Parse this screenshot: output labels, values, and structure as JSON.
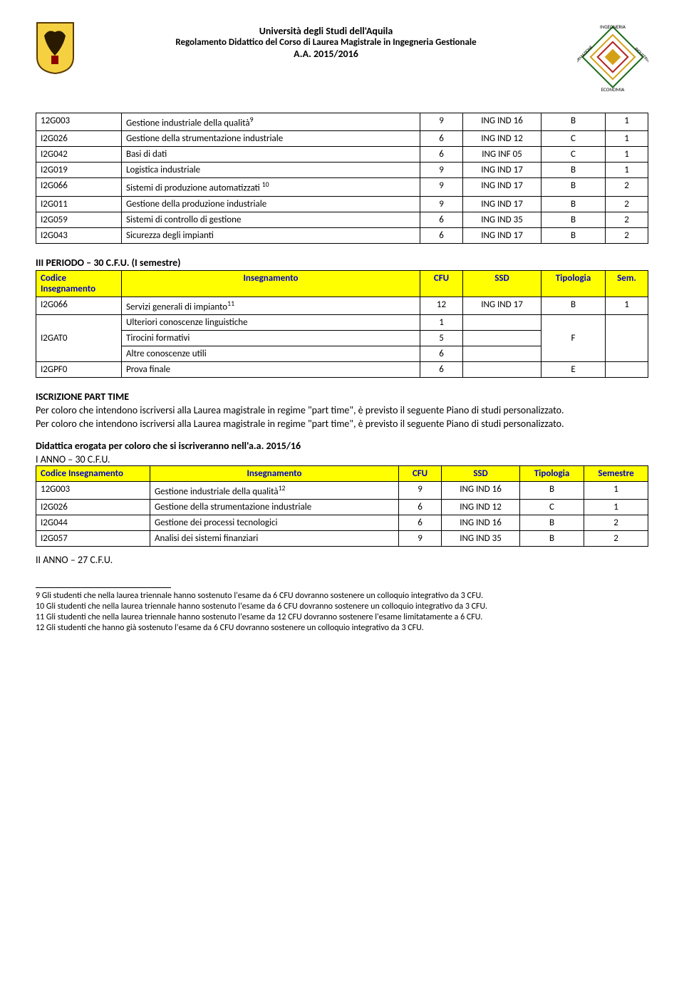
{
  "header": {
    "line1": "Università degli Studi dell'Aquila",
    "line2": "Regolamento Didattico del Corso di Laurea Magistrale in Ingegneria Gestionale",
    "line3": "A.A. 2015/2016"
  },
  "table1": {
    "rows": [
      {
        "code": "12G003",
        "name": "Gestione industriale della qualità",
        "sup": "9",
        "cfu": "9",
        "ssd": "ING IND 16",
        "tip": "B",
        "sem": "1"
      },
      {
        "code": "I2G026",
        "name": "Gestione della strumentazione industriale",
        "sup": "",
        "cfu": "6",
        "ssd": "ING IND 12",
        "tip": "C",
        "sem": "1"
      },
      {
        "code": "I2G042",
        "name": "Basi di dati",
        "sup": "",
        "cfu": "6",
        "ssd": "ING INF 05",
        "tip": "C",
        "sem": "1"
      },
      {
        "code": "I2G019",
        "name": "Logistica industriale",
        "sup": "",
        "cfu": "9",
        "ssd": "ING IND 17",
        "tip": "B",
        "sem": "1"
      },
      {
        "code": "I2G066",
        "name": "Sistemi di produzione automatizzati ",
        "sup": "10",
        "cfu": "9",
        "ssd": "ING IND 17",
        "tip": "B",
        "sem": "2"
      },
      {
        "code": "I2G011",
        "name": "Gestione della produzione industriale",
        "sup": "",
        "cfu": "9",
        "ssd": "ING IND 17",
        "tip": "B",
        "sem": "2"
      },
      {
        "code": "I2G059",
        "name": "Sistemi di controllo di gestione",
        "sup": "",
        "cfu": "6",
        "ssd": "ING IND 35",
        "tip": "B",
        "sem": "2"
      },
      {
        "code": "I2G043",
        "name": "Sicurezza degli impianti",
        "sup": "",
        "cfu": "6",
        "ssd": "ING IND 17",
        "tip": "B",
        "sem": "2"
      }
    ]
  },
  "period3_title": "III PERIODO – 30 C.F.U. (I semestre)",
  "table2": {
    "head": {
      "c1": "Codice Insegnamento",
      "c2": "Insegnamento",
      "c3": "CFU",
      "c4": "SSD",
      "c5": "Tipologia",
      "c6": "Sem."
    },
    "row1": {
      "code": "I2G066",
      "name": "Servizi generali di impianto",
      "sup": "11",
      "cfu": "12",
      "ssd": "ING IND 17",
      "tip": "B",
      "sem": "1"
    },
    "row2a": {
      "code": "I2GAT0",
      "name": "Ulteriori conoscenze linguistiche",
      "cfu": "1"
    },
    "row2b": {
      "name": "Tirocini formativi",
      "cfu": "5",
      "tip": "F"
    },
    "row2c": {
      "name": "Altre conoscenze utili",
      "cfu": "6"
    },
    "row3": {
      "code": "I2GPF0",
      "name": "Prova finale",
      "cfu": "6",
      "tip": "E"
    }
  },
  "iscrizione": {
    "title": "ISCRIZIONE PART TIME",
    "p1": "Per coloro che intendono iscriversi alla Laurea magistrale in regime \"part time\", è previsto il seguente Piano di studi personalizzato.",
    "p2": "Per coloro che intendono iscriversi alla Laurea magistrale in regime \"part time\", è previsto il seguente Piano di studi personalizzato."
  },
  "didattica_title": "Didattica erogata per coloro che si iscriveranno nell'a.a. 2015/16",
  "anno1_title": "I ANNO – 30 C.F.U.",
  "table3": {
    "head": {
      "c1": "Codice Insegnamento",
      "c2": "Insegnamento",
      "c3": "CFU",
      "c4": "SSD",
      "c5": "Tipologia",
      "c6": "Semestre"
    },
    "rows": [
      {
        "code": "12G003",
        "name": "Gestione industriale della qualità",
        "sup": "12",
        "cfu": "9",
        "ssd": "ING IND 16",
        "tip": "B",
        "sem": "1"
      },
      {
        "code": "I2G026",
        "name": "Gestione della strumentazione industriale",
        "sup": "",
        "cfu": "6",
        "ssd": "ING IND 12",
        "tip": "C",
        "sem": "1"
      },
      {
        "code": "I2G044",
        "name": "Gestione dei processi tecnologici",
        "sup": "",
        "cfu": "6",
        "ssd": "ING IND 16",
        "tip": "B",
        "sem": "2"
      },
      {
        "code": "I2G057",
        "name": "Analisi dei sistemi finanziari",
        "sup": "",
        "cfu": "9",
        "ssd": "ING IND 35",
        "tip": "B",
        "sem": "2"
      }
    ]
  },
  "anno2_title": "II ANNO – 27 C.F.U.",
  "fn9": "9 Gli studenti che nella laurea triennale hanno sostenuto l'esame da 6 CFU dovranno sostenere un colloquio integrativo da 3 CFU.",
  "fn10": "10 Gli studenti che nella laurea triennale hanno sostenuto l'esame da 6 CFU dovranno sostenere un colloquio integrativo da 3 CFU.",
  "fn11": "11 Gli studenti che nella laurea triennale hanno sostenuto l'esame da 12 CFU dovranno sostenere l'esame limitatamente a 6 CFU.",
  "fn12": "12 Gli studenti che hanno già sostenuto l'esame da 6 CFU dovranno sostenere un colloquio integrativo da 3 CFU."
}
